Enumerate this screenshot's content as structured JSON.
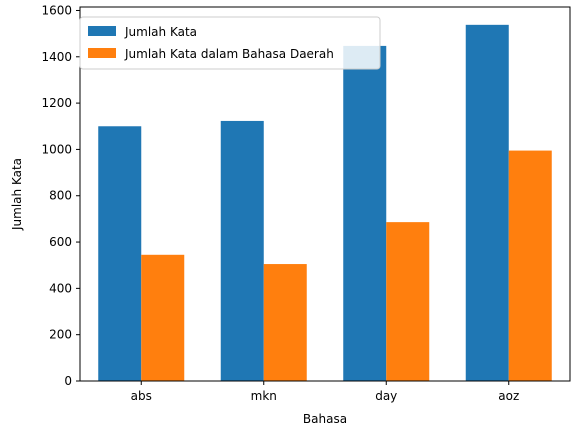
{
  "chart_data": {
    "type": "bar",
    "title": "",
    "xlabel": "Bahasa",
    "ylabel": "Jumlah Kata",
    "categories": [
      "abs",
      "mkn",
      "day",
      "aoz"
    ],
    "series": [
      {
        "name": "Jumlah Kata",
        "color": "#1f77b4",
        "values": [
          1100,
          1123,
          1447,
          1538
        ]
      },
      {
        "name": "Jumlah Kata dalam Bahasa Daerah",
        "color": "#ff7f0e",
        "values": [
          545,
          505,
          686,
          995
        ]
      }
    ],
    "ylim": [
      0,
      1615
    ],
    "yticks": [
      0,
      200,
      400,
      600,
      800,
      1000,
      1200,
      1400,
      1600
    ],
    "grid": false,
    "legend_position": "top-left"
  }
}
